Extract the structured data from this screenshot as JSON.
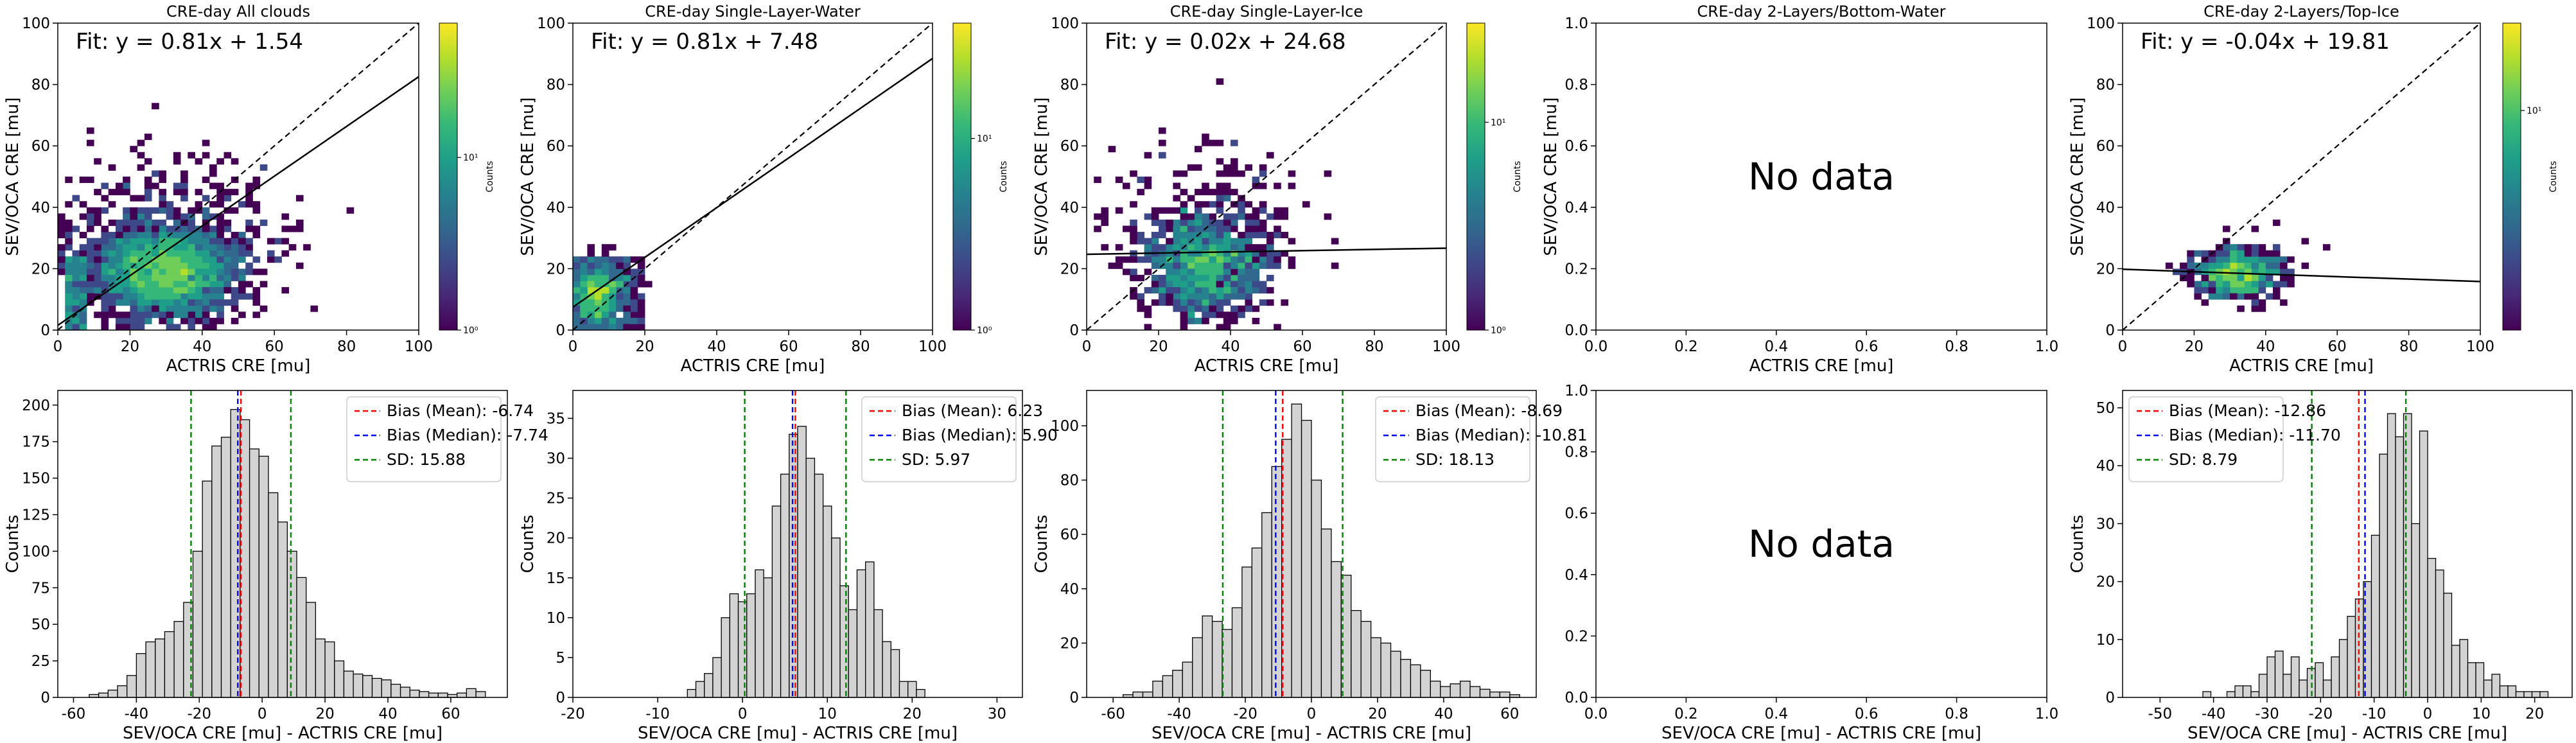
{
  "palette": {
    "viridis": [
      "#440154",
      "#482878",
      "#3e4989",
      "#31688e",
      "#26828e",
      "#1f9e89",
      "#35b779",
      "#6ece58",
      "#b5de2b",
      "#fde725"
    ],
    "hist_fill": "#d3d3d3",
    "mean_line": "#ff0000",
    "median_line": "#0000ff",
    "sd_line": "#008000"
  },
  "chart_data": [
    {
      "type": "heatmap",
      "title": "CRE-day All clouds",
      "xlabel": "ACTRIS CRE [mu]",
      "ylabel": "SEV/OCA CRE [mu]",
      "xlim": [
        0,
        100
      ],
      "ylim": [
        0,
        100
      ],
      "xticks": [
        0,
        20,
        40,
        60,
        80,
        100
      ],
      "yticks": [
        0,
        20,
        40,
        60,
        80,
        100
      ],
      "fit_text": "Fit: y = 0.81x + 1.54",
      "fit": {
        "slope": 0.81,
        "intercept": 1.54
      },
      "one_to_one": true,
      "has_data": true,
      "colorbar": {
        "label": "Counts",
        "scale": "log",
        "tick_labels": [
          "10⁰",
          "10¹"
        ],
        "tick_values": [
          1,
          10
        ],
        "range": [
          1,
          60
        ]
      },
      "cloud": {
        "cx": 30,
        "cy": 18,
        "sx": 9,
        "sy": 7,
        "n": 2400,
        "wide_sx": 15,
        "wide_sy": 16,
        "wide_n": 600,
        "seed": 11,
        "low_band": [
          0,
          24
        ],
        "low_x": [
          2,
          8
        ]
      }
    },
    {
      "type": "heatmap",
      "title": "CRE-day Single-Layer-Water",
      "xlabel": "ACTRIS CRE [mu]",
      "ylabel": "SEV/OCA CRE [mu]",
      "xlim": [
        0,
        100
      ],
      "ylim": [
        0,
        100
      ],
      "xticks": [
        0,
        20,
        40,
        60,
        80,
        100
      ],
      "yticks": [
        0,
        20,
        40,
        60,
        80,
        100
      ],
      "fit_text": "Fit: y = 0.81x + 7.48",
      "fit": {
        "slope": 0.81,
        "intercept": 7.48
      },
      "one_to_one": true,
      "has_data": true,
      "colorbar": {
        "label": "Counts",
        "scale": "log",
        "tick_labels": [
          "10⁰",
          "10¹"
        ],
        "tick_values": [
          1,
          10
        ],
        "range": [
          1,
          40
        ]
      },
      "cloud": {
        "cx": 6,
        "cy": 11,
        "sx": 3.5,
        "sy": 5,
        "n": 500,
        "wide_sx": 6,
        "wide_sy": 6,
        "wide_n": 40,
        "seed": 23,
        "low_band": [
          0,
          24
        ],
        "low_x": [
          0,
          20
        ]
      }
    },
    {
      "type": "heatmap",
      "title": "CRE-day Single-Layer-Ice",
      "xlabel": "ACTRIS CRE [mu]",
      "ylabel": "SEV/OCA CRE [mu]",
      "xlim": [
        0,
        100
      ],
      "ylim": [
        0,
        100
      ],
      "xticks": [
        0,
        20,
        40,
        60,
        80,
        100
      ],
      "yticks": [
        0,
        20,
        40,
        60,
        80,
        100
      ],
      "fit_text": "Fit: y = 0.02x + 24.68",
      "fit": {
        "slope": 0.02,
        "intercept": 24.68
      },
      "one_to_one": true,
      "has_data": true,
      "colorbar": {
        "label": "Counts",
        "scale": "log",
        "tick_labels": [
          "10⁰",
          "10¹"
        ],
        "tick_values": [
          1,
          10
        ],
        "range": [
          1,
          30
        ]
      },
      "cloud": {
        "cx": 33,
        "cy": 20,
        "sx": 8,
        "sy": 8,
        "n": 900,
        "wide_sx": 13,
        "wide_sy": 18,
        "wide_n": 300,
        "seed": 37,
        "low_band": [
          0,
          0
        ],
        "low_x": [
          0,
          0
        ]
      }
    },
    {
      "type": "heatmap",
      "title": "CRE-day 2-Layers/Bottom-Water",
      "xlabel": "ACTRIS CRE [mu]",
      "ylabel": "SEV/OCA CRE [mu]",
      "xlim": [
        0,
        1
      ],
      "ylim": [
        0,
        1
      ],
      "xticks": [
        0.0,
        0.2,
        0.4,
        0.6,
        0.8,
        1.0
      ],
      "yticks": [
        0.0,
        0.2,
        0.4,
        0.6,
        0.8,
        1.0
      ],
      "tick_format": "0.0",
      "has_data": false,
      "no_data_text": "No data"
    },
    {
      "type": "heatmap",
      "title": "CRE-day 2-Layers/Top-Ice",
      "xlabel": "ACTRIS CRE [mu]",
      "ylabel": "SEV/OCA CRE [mu]",
      "xlim": [
        0,
        100
      ],
      "ylim": [
        0,
        100
      ],
      "xticks": [
        0,
        20,
        40,
        60,
        80,
        100
      ],
      "yticks": [
        0,
        20,
        40,
        60,
        80,
        100
      ],
      "fit_text": "Fit: y = -0.04x + 19.81",
      "fit": {
        "slope": -0.04,
        "intercept": 19.81
      },
      "one_to_one": true,
      "has_data": true,
      "colorbar": {
        "label": "Counts",
        "scale": "log",
        "tick_labels": [
          "10¹"
        ],
        "tick_values": [
          10
        ],
        "range": [
          1,
          25
        ]
      },
      "cloud": {
        "cx": 32,
        "cy": 18,
        "sx": 6,
        "sy": 4,
        "n": 520,
        "wide_sx": 9,
        "wide_sy": 6,
        "wide_n": 60,
        "seed": 41,
        "low_band": [
          0,
          0
        ],
        "low_x": [
          0,
          0
        ]
      }
    },
    {
      "type": "bar",
      "subtype": "histogram",
      "xlabel": "SEV/OCA CRE [mu] - ACTRIS CRE [mu]",
      "ylabel": "Counts",
      "xlim": [
        -65,
        78
      ],
      "ylim": [
        0,
        210
      ],
      "xticks": [
        -60,
        -40,
        -20,
        0,
        20,
        40,
        60
      ],
      "yticks": [
        0,
        25,
        50,
        75,
        100,
        125,
        150,
        175,
        200
      ],
      "has_data": true,
      "bin_start": -55,
      "bin_width": 3,
      "counts": [
        2,
        3,
        5,
        8,
        15,
        30,
        38,
        40,
        45,
        52,
        65,
        100,
        148,
        172,
        178,
        197,
        190,
        170,
        165,
        140,
        120,
        100,
        82,
        65,
        40,
        38,
        25,
        18,
        16,
        15,
        13,
        12,
        9,
        7,
        5,
        4,
        3,
        3,
        2,
        3,
        6,
        4
      ],
      "mean": -6.74,
      "median": -7.74,
      "sd": 15.88,
      "legend": [
        "Bias (Mean): -6.74",
        "Bias (Median): -7.74",
        "SD: 15.88"
      ]
    },
    {
      "type": "bar",
      "subtype": "histogram",
      "xlabel": "SEV/OCA CRE [mu] - ACTRIS CRE [mu]",
      "ylabel": "Counts",
      "xlim": [
        -20,
        33
      ],
      "ylim": [
        0,
        38.5
      ],
      "xticks": [
        -20,
        -10,
        0,
        10,
        20,
        30
      ],
      "yticks": [
        0,
        5,
        10,
        15,
        20,
        25,
        30,
        35
      ],
      "has_data": true,
      "bin_start": -6.5,
      "bin_width": 1,
      "counts": [
        1,
        2,
        3,
        5,
        10,
        13,
        12,
        13,
        16,
        15,
        24,
        28,
        33,
        34,
        30,
        28,
        24,
        20,
        14,
        11,
        16,
        17,
        11,
        7,
        6,
        2,
        2,
        1
      ],
      "mean": 6.23,
      "median": 5.9,
      "sd": 5.97,
      "legend": [
        "Bias (Mean): 6.23",
        "Bias (Median): 5.90",
        "SD: 5.97"
      ]
    },
    {
      "type": "bar",
      "subtype": "histogram",
      "xlabel": "SEV/OCA CRE [mu] - ACTRIS CRE [mu]",
      "ylabel": "Counts",
      "xlim": [
        -68,
        68
      ],
      "ylim": [
        0,
        113
      ],
      "xticks": [
        -60,
        -40,
        -20,
        0,
        20,
        40,
        60
      ],
      "yticks": [
        0,
        20,
        40,
        60,
        80,
        100
      ],
      "has_data": true,
      "bin_start": -57,
      "bin_width": 3,
      "counts": [
        1,
        2,
        2,
        6,
        8,
        10,
        13,
        22,
        30,
        28,
        25,
        33,
        48,
        55,
        68,
        85,
        95,
        108,
        102,
        80,
        62,
        50,
        45,
        32,
        28,
        22,
        20,
        17,
        14,
        12,
        10,
        6,
        4,
        5,
        6,
        4,
        3,
        2,
        2,
        1
      ],
      "mean": -8.69,
      "median": -10.81,
      "sd": 18.13,
      "legend": [
        "Bias (Mean): -8.69",
        "Bias (Median): -10.81",
        "SD: 18.13"
      ]
    },
    {
      "type": "bar",
      "subtype": "histogram",
      "xlabel": "SEV/OCA CRE [mu] - ACTRIS CRE [mu]",
      "ylabel": "",
      "xlim": [
        0,
        1
      ],
      "ylim": [
        0,
        1
      ],
      "xticks": [
        0.0,
        0.2,
        0.4,
        0.6,
        0.8,
        1.0
      ],
      "yticks": [
        0.0,
        0.2,
        0.4,
        0.6,
        0.8,
        1.0
      ],
      "tick_format": "0.0",
      "has_data": false,
      "no_data_text": "No data"
    },
    {
      "type": "bar",
      "subtype": "histogram",
      "xlabel": "SEV/OCA CRE [mu] - ACTRIS CRE [mu]",
      "ylabel": "Counts",
      "xlim": [
        -57,
        27
      ],
      "ylim": [
        0,
        53
      ],
      "xticks": [
        -50,
        -40,
        -30,
        -20,
        -10,
        0,
        10,
        20
      ],
      "yticks": [
        0,
        10,
        20,
        30,
        40,
        50
      ],
      "has_data": true,
      "bin_start": -42,
      "bin_width": 1.5,
      "counts": [
        1,
        0,
        0,
        1,
        2,
        2,
        1,
        4,
        7,
        8,
        4,
        7,
        3,
        5,
        6,
        3,
        7,
        10,
        14,
        17,
        20,
        28,
        42,
        49,
        45,
        49,
        30,
        46,
        24,
        22,
        18,
        9,
        10,
        6,
        6,
        3,
        4,
        2,
        2,
        1,
        1,
        1,
        1
      ],
      "mean": -12.86,
      "median": -11.7,
      "sd": 8.79,
      "legend": [
        "Bias (Mean): -12.86",
        "Bias (Median): -11.70",
        "SD: 8.79"
      ]
    }
  ]
}
